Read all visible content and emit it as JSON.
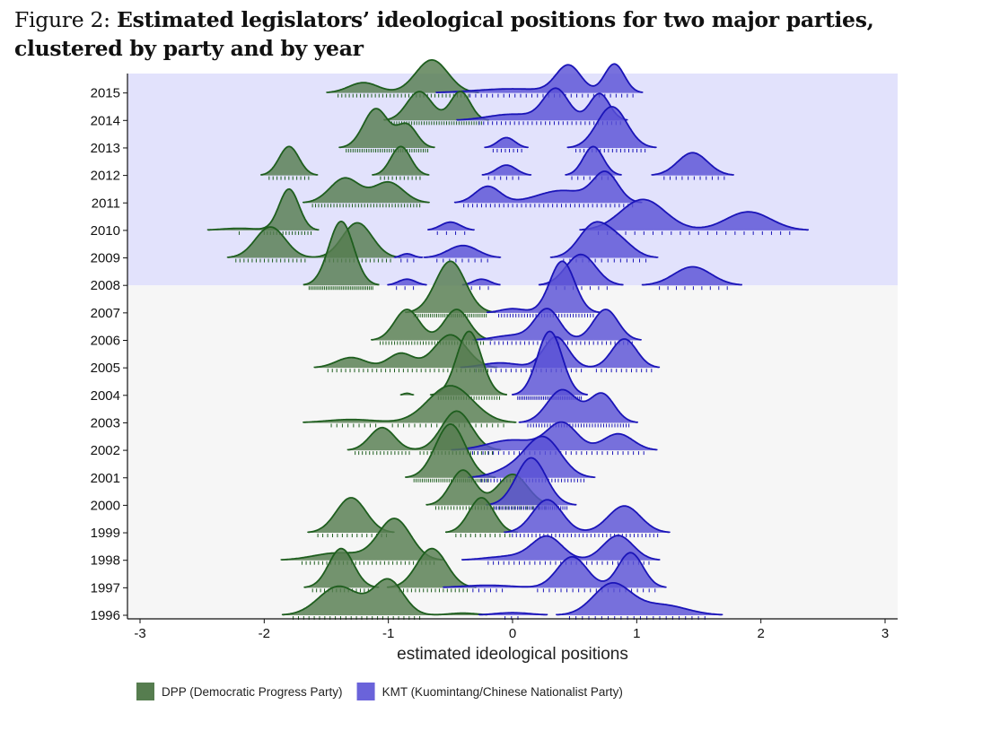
{
  "caption": {
    "lead": "Figure 2: ",
    "title": "Estimated legislators’ ideological positions for two major parties, clustered by party and by year"
  },
  "colors": {
    "dpp_fill": "#567d4f",
    "dpp_line": "#1e5e1e",
    "kmt_fill": "#5a52d6",
    "kmt_line": "#1a14b8",
    "band_recent": "#e2e2fc",
    "band_early": "#f6f6f6"
  },
  "chart_data": {
    "type": "area",
    "subtype": "ridgeline",
    "xlabel": "estimated ideological positions",
    "ylabel": "",
    "xlim": [
      -3,
      3
    ],
    "x_ticks": [
      "-3",
      "-2",
      "-1",
      "0",
      "1",
      "2",
      "3"
    ],
    "years": [
      "1996",
      "1997",
      "1998",
      "1999",
      "2000",
      "2001",
      "2002",
      "2003",
      "2004",
      "2005",
      "2006",
      "2007",
      "2008",
      "2009",
      "2010",
      "2011",
      "2012",
      "2013",
      "2014",
      "2015"
    ],
    "shaded_years_from": "2008",
    "legend": [
      {
        "key": "dpp",
        "label": "DPP (Democratic Progress Party)"
      },
      {
        "key": "kmt",
        "label": "KMT (Kuomintang/Chinese Nationalist Party)"
      }
    ],
    "series": [
      {
        "key": "dpp",
        "name": "DPP (Democratic Progress Party)",
        "ridges": {
          "1996": [
            [
              -1.4,
              0.16,
              0.7
            ],
            [
              -1.0,
              0.12,
              0.85
            ],
            [
              -0.4,
              0.12,
              0.05
            ]
          ],
          "1997": [
            [
              -1.38,
              0.1,
              0.95
            ],
            [
              -0.65,
              0.12,
              0.95
            ]
          ],
          "1998": [
            [
              -1.4,
              0.2,
              0.18
            ],
            [
              -0.95,
              0.13,
              1.0
            ]
          ],
          "1999": [
            [
              -1.3,
              0.12,
              0.85
            ],
            [
              -0.25,
              0.1,
              0.85
            ]
          ],
          "2000": [
            [
              -0.4,
              0.1,
              0.85
            ],
            [
              0.0,
              0.12,
              0.75
            ]
          ],
          "2001": [
            [
              -0.5,
              0.12,
              1.3
            ]
          ],
          "2002": [
            [
              -1.05,
              0.1,
              0.55
            ],
            [
              -0.45,
              0.12,
              0.95
            ]
          ],
          "2003": [
            [
              -1.3,
              0.2,
              0.08
            ],
            [
              -0.5,
              0.18,
              0.9
            ]
          ],
          "2004": [
            [
              -0.85,
              0.03,
              0.05
            ],
            [
              -0.35,
              0.1,
              1.55
            ]
          ],
          "2005": [
            [
              -1.3,
              0.12,
              0.25
            ],
            [
              -0.9,
              0.1,
              0.35
            ],
            [
              -0.5,
              0.13,
              0.8
            ]
          ],
          "2006": [
            [
              -0.85,
              0.1,
              0.75
            ],
            [
              -0.45,
              0.1,
              0.75
            ]
          ],
          "2007": [
            [
              -0.5,
              0.12,
              1.25
            ]
          ],
          "2008": [
            [
              -1.38,
              0.1,
              1.55
            ]
          ],
          "2009": [
            [
              -1.95,
              0.12,
              0.75
            ],
            [
              -1.25,
              0.12,
              0.85
            ]
          ],
          "2010": [
            [
              -2.2,
              0.15,
              0.05
            ],
            [
              -1.8,
              0.08,
              1.0
            ]
          ],
          "2011": [
            [
              -1.35,
              0.12,
              0.6
            ],
            [
              -1.0,
              0.12,
              0.5
            ]
          ],
          "2012": [
            [
              -1.8,
              0.08,
              0.7
            ],
            [
              -0.9,
              0.08,
              0.7
            ]
          ],
          "2013": [
            [
              -1.1,
              0.1,
              0.95
            ],
            [
              -0.85,
              0.08,
              0.55
            ]
          ],
          "2014": [
            [
              -0.75,
              0.1,
              0.7
            ],
            [
              -0.42,
              0.08,
              0.7
            ]
          ],
          "2015": [
            [
              -1.2,
              0.12,
              0.25
            ],
            [
              -0.65,
              0.13,
              0.8
            ]
          ]
        }
      },
      {
        "key": "kmt",
        "name": "KMT (Kuomintang/Chinese Nationalist Party)",
        "ridges": {
          "1996": [
            [
              0.0,
              0.15,
              0.06
            ],
            [
              0.8,
              0.15,
              0.75
            ],
            [
              1.2,
              0.2,
              0.25
            ]
          ],
          "1997": [
            [
              -0.2,
              0.2,
              0.06
            ],
            [
              0.48,
              0.12,
              0.75
            ],
            [
              0.95,
              0.1,
              0.85
            ]
          ],
          "1998": [
            [
              0.0,
              0.2,
              0.1
            ],
            [
              0.28,
              0.12,
              0.55
            ],
            [
              0.85,
              0.12,
              0.6
            ]
          ],
          "1999": [
            [
              0.28,
              0.12,
              0.8
            ],
            [
              0.9,
              0.13,
              0.65
            ]
          ],
          "2000": [
            [
              0.15,
              0.12,
              1.15
            ]
          ],
          "2001": [
            [
              0.25,
              0.14,
              0.95
            ],
            [
              0.0,
              0.15,
              0.2
            ]
          ],
          "2002": [
            [
              0.0,
              0.2,
              0.25
            ],
            [
              0.4,
              0.12,
              0.65
            ],
            [
              0.85,
              0.12,
              0.4
            ]
          ],
          "2003": [
            [
              0.4,
              0.12,
              0.8
            ],
            [
              0.72,
              0.1,
              0.7
            ]
          ],
          "2004": [
            [
              0.3,
              0.1,
              1.55
            ]
          ],
          "2005": [
            [
              -0.1,
              0.15,
              0.12
            ],
            [
              0.35,
              0.1,
              0.75
            ],
            [
              0.9,
              0.1,
              0.7
            ]
          ],
          "2006": [
            [
              0.0,
              0.15,
              0.12
            ],
            [
              0.28,
              0.1,
              0.75
            ],
            [
              0.75,
              0.1,
              0.75
            ]
          ],
          "2007": [
            [
              0.0,
              0.1,
              0.1
            ],
            [
              0.4,
              0.1,
              1.25
            ]
          ],
          "2008": [
            [
              -0.85,
              0.07,
              0.15
            ],
            [
              -0.25,
              0.07,
              0.15
            ],
            [
              0.55,
              0.12,
              0.75
            ],
            [
              1.45,
              0.15,
              0.45
            ]
          ],
          "2009": [
            [
              -0.85,
              0.05,
              0.1
            ],
            [
              -0.4,
              0.12,
              0.3
            ],
            [
              0.65,
              0.12,
              0.75
            ],
            [
              0.85,
              0.12,
              0.4
            ]
          ],
          "2010": [
            [
              -0.5,
              0.08,
              0.2
            ],
            [
              1.05,
              0.18,
              0.75
            ],
            [
              1.9,
              0.18,
              0.45
            ]
          ],
          "2011": [
            [
              -0.2,
              0.1,
              0.4
            ],
            [
              0.4,
              0.2,
              0.3
            ],
            [
              0.75,
              0.1,
              0.7
            ]
          ],
          "2012": [
            [
              -0.05,
              0.08,
              0.25
            ],
            [
              0.65,
              0.08,
              0.7
            ],
            [
              1.45,
              0.12,
              0.55
            ]
          ],
          "2013": [
            [
              -0.05,
              0.07,
              0.25
            ],
            [
              0.8,
              0.12,
              1.0
            ]
          ],
          "2014": [
            [
              0.0,
              0.2,
              0.15
            ],
            [
              0.35,
              0.1,
              0.75
            ],
            [
              0.7,
              0.08,
              0.65
            ]
          ],
          "2015": [
            [
              0.0,
              0.3,
              0.1
            ],
            [
              0.45,
              0.1,
              0.65
            ],
            [
              0.82,
              0.08,
              0.7
            ]
          ]
        }
      }
    ]
  }
}
